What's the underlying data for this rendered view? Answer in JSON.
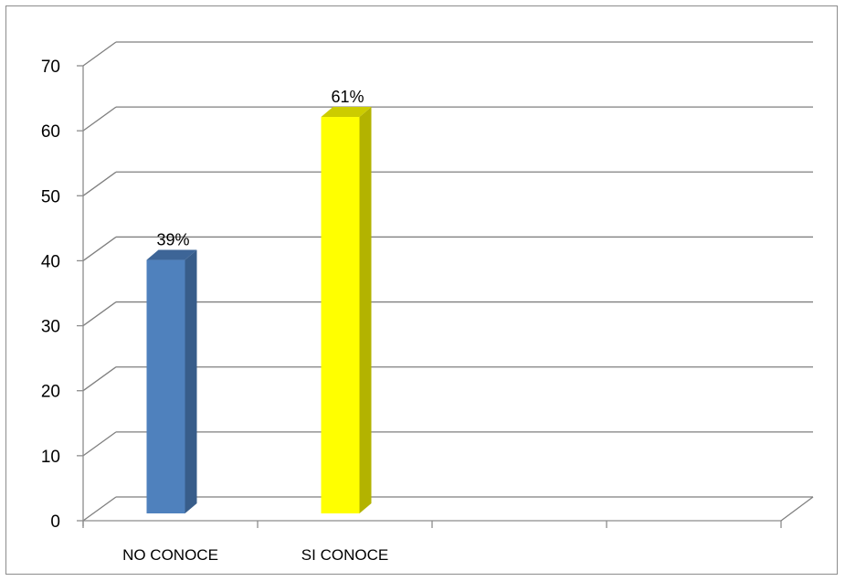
{
  "chart_data": {
    "type": "bar",
    "style": "3d-column",
    "categories": [
      "NO CONOCE",
      "SI CONOCE"
    ],
    "values": [
      39,
      61
    ],
    "data_labels": [
      "39%",
      "61%"
    ],
    "slots": 4,
    "title": "",
    "xlabel": "",
    "ylabel": "",
    "ylim": [
      0,
      70
    ],
    "yticks": [
      "0",
      "10",
      "20",
      "30",
      "40",
      "50",
      "60",
      "70"
    ],
    "grid": true,
    "legend": "none",
    "colors": {
      "bars": [
        "#4f81bd",
        "#ffff00"
      ],
      "bar_sides": [
        "#385d8a",
        "#b3b300"
      ],
      "bar_tops": [
        "#3d6597",
        "#cccc00"
      ],
      "grid": "#7f7f7f",
      "axis": "#8c8c8c"
    }
  }
}
